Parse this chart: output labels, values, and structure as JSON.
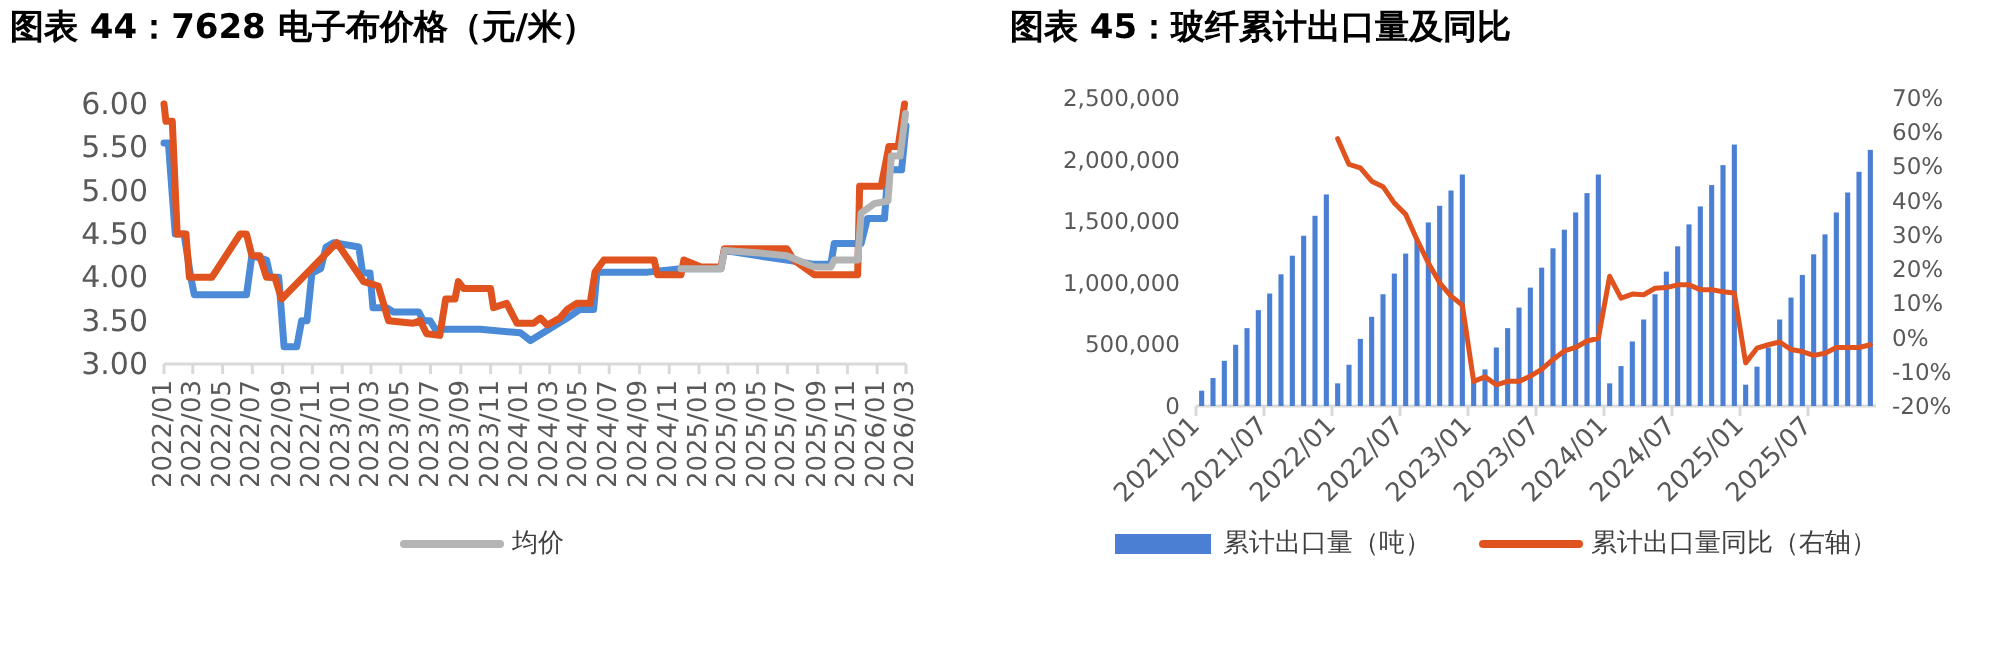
{
  "chart_data": [
    {
      "type": "line",
      "title": "图表 44：7628 电子布价格（元/米）",
      "xlim": [
        "2022-01-01",
        "2026-03-01"
      ],
      "xticks": [
        {
          "value": "2022-01",
          "label": "2022/01"
        },
        {
          "value": "2022-03",
          "label": "2022/03"
        },
        {
          "value": "2022-05",
          "label": "2022/05"
        },
        {
          "value": "2022-07",
          "label": "2022/07"
        },
        {
          "value": "2022-09",
          "label": "2022/09"
        },
        {
          "value": "2022-11",
          "label": "2022/11"
        },
        {
          "value": "2023-01",
          "label": "2023/01"
        },
        {
          "value": "2023-03",
          "label": "2023/03"
        },
        {
          "value": "2023-05",
          "label": "2023/05"
        },
        {
          "value": "2023-07",
          "label": "2023/07"
        },
        {
          "value": "2023-09",
          "label": "2023/09"
        },
        {
          "value": "2023-11",
          "label": "2023/11"
        },
        {
          "value": "2024-01",
          "label": "2024/01"
        },
        {
          "value": "2024-03",
          "label": "2024/03"
        },
        {
          "value": "2024-05",
          "label": "2024/05"
        },
        {
          "value": "2024-07",
          "label": "2024/07"
        },
        {
          "value": "2024-09",
          "label": "2024/09"
        },
        {
          "value": "2024-11",
          "label": "2024/11"
        },
        {
          "value": "2025-01",
          "label": "2025/01"
        },
        {
          "value": "2025-03",
          "label": "2025/03"
        },
        {
          "value": "2025-05",
          "label": "2025/05"
        },
        {
          "value": "2025-07",
          "label": "2025/07"
        },
        {
          "value": "2025-09",
          "label": "2025/09"
        },
        {
          "value": "2025-11",
          "label": "2025/11"
        },
        {
          "value": "2026-01",
          "label": "2026/01"
        },
        {
          "value": "2026-03",
          "label": "2026/03"
        }
      ],
      "ylim": [
        3,
        6
      ],
      "yticks": [
        {
          "value": 3,
          "label": "3.00"
        },
        {
          "value": 3.5,
          "label": "3.50"
        },
        {
          "value": 4,
          "label": "4.00"
        },
        {
          "value": 4.5,
          "label": "4.50"
        },
        {
          "value": 5,
          "label": "5.00"
        },
        {
          "value": 5.5,
          "label": "5.50"
        },
        {
          "value": 6,
          "label": "6.00"
        }
      ],
      "legend": "bottom",
      "series": [
        {
          "color": "#4a8ad6",
          "x": [
            "2022-01-01",
            "2022-01-10",
            "2022-01-24",
            "2022-02-11",
            "2022-02-25",
            "2022-03-04",
            "2022-06-19",
            "2022-06-30",
            "2022-07-30",
            "2022-08-07",
            "2022-08-24",
            "2022-09-04",
            "2022-09-30",
            "2022-10-10",
            "2022-10-21",
            "2022-10-31",
            "2022-11-18",
            "2022-11-29",
            "2022-12-15",
            "2023-02-04",
            "2023-02-12",
            "2023-02-27",
            "2023-03-05",
            "2023-04-02",
            "2023-04-16",
            "2023-06-07",
            "2023-06-16",
            "2023-06-30",
            "2023-07-11",
            "2023-10-11",
            "2024-01-01",
            "2024-01-22",
            "2024-04-06",
            "2024-05-02",
            "2024-05-30",
            "2024-06-06",
            "2024-09-18",
            "2024-11-25",
            "2025-02-15",
            "2025-02-22",
            "2025-04-30",
            "2025-06-30",
            "2025-08-25",
            "2025-09-28",
            "2025-10-05",
            "2025-11-29",
            "2025-12-12",
            "2026-01-16",
            "2026-01-23",
            "2026-02-20",
            "2026-03-01"
          ],
          "values": [
            5.55,
            5.55,
            4.5,
            4.5,
            4.0,
            3.8,
            3.8,
            4.25,
            4.2,
            4.0,
            4.0,
            3.2,
            3.2,
            3.5,
            3.5,
            4.05,
            4.1,
            4.35,
            4.4,
            4.35,
            4.05,
            4.05,
            3.65,
            3.65,
            3.6,
            3.6,
            3.5,
            3.5,
            3.4,
            3.4,
            3.36,
            3.27,
            3.53,
            3.63,
            3.63,
            4.06,
            4.06,
            4.1,
            4.1,
            4.31,
            4.25,
            4.2,
            4.15,
            4.15,
            4.39,
            4.39,
            4.68,
            4.68,
            5.24,
            5.24,
            5.75
          ]
        },
        {
          "color": "#e0521e",
          "x": [
            "2022-01-01",
            "2022-01-05",
            "2022-01-18",
            "2022-01-28",
            "2022-02-15",
            "2022-02-22",
            "2022-04-09",
            "2022-06-06",
            "2022-06-19",
            "2022-06-30",
            "2022-07-16",
            "2022-07-30",
            "2022-08-16",
            "2022-08-30",
            "2022-12-21",
            "2023-02-14",
            "2023-03-16",
            "2023-04-06",
            "2023-05-26",
            "2023-06-10",
            "2023-06-23",
            "2023-07-20",
            "2023-08-01",
            "2023-08-20",
            "2023-08-27",
            "2023-09-07",
            "2023-11-01",
            "2023-11-07",
            "2023-12-04",
            "2023-12-25",
            "2024-01-28",
            "2024-02-11",
            "2024-02-25",
            "2024-03-22",
            "2024-04-06",
            "2024-04-26",
            "2024-05-23",
            "2024-06-02",
            "2024-06-20",
            "2024-10-01",
            "2024-10-08",
            "2024-11-25",
            "2024-12-01",
            "2025-01-05",
            "2025-02-15",
            "2025-02-22",
            "2025-06-30",
            "2025-07-14",
            "2025-08-25",
            "2025-11-22",
            "2025-11-26",
            "2026-01-09",
            "2026-01-25",
            "2026-02-13",
            "2026-02-26"
          ],
          "values": [
            6.0,
            5.8,
            5.8,
            4.5,
            4.5,
            4.0,
            4.0,
            4.5,
            4.5,
            4.25,
            4.25,
            4.0,
            4.0,
            3.75,
            4.4,
            3.95,
            3.9,
            3.5,
            3.47,
            3.5,
            3.35,
            3.33,
            3.75,
            3.75,
            3.95,
            3.87,
            3.87,
            3.65,
            3.7,
            3.47,
            3.47,
            3.53,
            3.45,
            3.53,
            3.63,
            3.7,
            3.7,
            4.06,
            4.2,
            4.2,
            4.03,
            4.03,
            4.2,
            4.12,
            4.12,
            4.33,
            4.33,
            4.2,
            4.03,
            4.03,
            5.05,
            5.05,
            5.51,
            5.51,
            6.0
          ]
        },
        {
          "name": "均价",
          "color": "#b4b4b4",
          "x": [
            "2024-11-25",
            "2025-02-15",
            "2025-02-22",
            "2025-05-06",
            "2025-06-30",
            "2025-08-25",
            "2025-09-28",
            "2025-10-05",
            "2025-11-22",
            "2025-11-29",
            "2025-12-26",
            "2026-01-23",
            "2026-01-30",
            "2026-02-17",
            "2026-02-28"
          ],
          "values": [
            4.1,
            4.1,
            4.31,
            4.28,
            4.25,
            4.12,
            4.12,
            4.2,
            4.2,
            4.74,
            4.85,
            4.88,
            5.4,
            5.4,
            5.89
          ]
        }
      ]
    },
    {
      "type": "bar",
      "title": "图表 45：玻纤累计出口量及同比",
      "categories": [
        "2021/01",
        null,
        null,
        null,
        null,
        null,
        "2021/07",
        null,
        null,
        null,
        null,
        null,
        "2022/01",
        null,
        null,
        null,
        null,
        null,
        "2022/07",
        null,
        null,
        null,
        null,
        null,
        "2023/01",
        null,
        null,
        null,
        null,
        null,
        "2023/07",
        null,
        null,
        null,
        null,
        null,
        "2024/01",
        null,
        null,
        null,
        null,
        null,
        "2024/07",
        null,
        null,
        null,
        null,
        null,
        "2025/01",
        null,
        null,
        null,
        null,
        null,
        "2025/07",
        null,
        null,
        null,
        null,
        null
      ],
      "ylim": [
        0,
        2500000
      ],
      "yticks": [
        {
          "value": 0,
          "label": "0"
        },
        {
          "value": 500000,
          "label": "500,000"
        },
        {
          "value": 1000000,
          "label": "1,000,000"
        },
        {
          "value": 1500000,
          "label": "1,500,000"
        },
        {
          "value": 2000000,
          "label": "2,000,000"
        },
        {
          "value": 2500000,
          "label": "2,500,000"
        }
      ],
      "y2lim": [
        -20,
        70
      ],
      "y2ticks": [
        {
          "value": -20,
          "label": "-20%"
        },
        {
          "value": -10,
          "label": "-10%"
        },
        {
          "value": 0,
          "label": "0%"
        },
        {
          "value": 10,
          "label": "10%"
        },
        {
          "value": 20,
          "label": "20%"
        },
        {
          "value": 30,
          "label": "30%"
        },
        {
          "value": 40,
          "label": "40%"
        },
        {
          "value": 50,
          "label": "50%"
        },
        {
          "value": 60,
          "label": "60%"
        },
        {
          "value": 70,
          "label": "70%"
        }
      ],
      "legend": "bottom",
      "series": [
        {
          "name": "累计出口量（吨）",
          "color": "#4a7fd4",
          "values": [
            124000,
            227000,
            367000,
            497000,
            632000,
            778000,
            913000,
            1069000,
            1220000,
            1382000,
            1544000,
            1717000,
            184000,
            335000,
            545000,
            724000,
            907000,
            1075000,
            1237000,
            1350000,
            1490000,
            1625000,
            1749000,
            1879000,
            200000,
            297000,
            475000,
            632000,
            799000,
            961000,
            1123000,
            1280000,
            1431000,
            1571000,
            1728000,
            1879000,
            184000,
            324000,
            524000,
            702000,
            907000,
            1091000,
            1296000,
            1474000,
            1620000,
            1793000,
            1955000,
            2122000,
            173000,
            319000,
            475000,
            702000,
            880000,
            1064000,
            1231000,
            1393000,
            1571000,
            1733000,
            1901000,
            2079000
          ]
        },
        {
          "name": "累计出口量同比（右轴）",
          "type": "line",
          "axis": "y2",
          "color": "#e0521e",
          "values": [
            null,
            null,
            null,
            null,
            null,
            null,
            null,
            null,
            null,
            null,
            null,
            null,
            58.1,
            50.6,
            49.6,
            45.7,
            44.1,
            39.3,
            36.0,
            28.6,
            21.8,
            16.0,
            12.1,
            9.5,
            -12.8,
            -11.5,
            -13.8,
            -12.8,
            -12.8,
            -11.3,
            -9.3,
            -6.4,
            -3.9,
            -2.9,
            -1.0,
            -0.2,
            17.9,
            11.5,
            12.7,
            12.5,
            14.4,
            14.6,
            15.4,
            15.4,
            14.0,
            14.0,
            13.4,
            13.0,
            -7.4,
            -3.1,
            -2.1,
            -1.3,
            -3.5,
            -4.1,
            -5.2,
            -4.6,
            -2.9,
            -2.9,
            -2.9,
            -2.1
          ]
        }
      ]
    }
  ]
}
